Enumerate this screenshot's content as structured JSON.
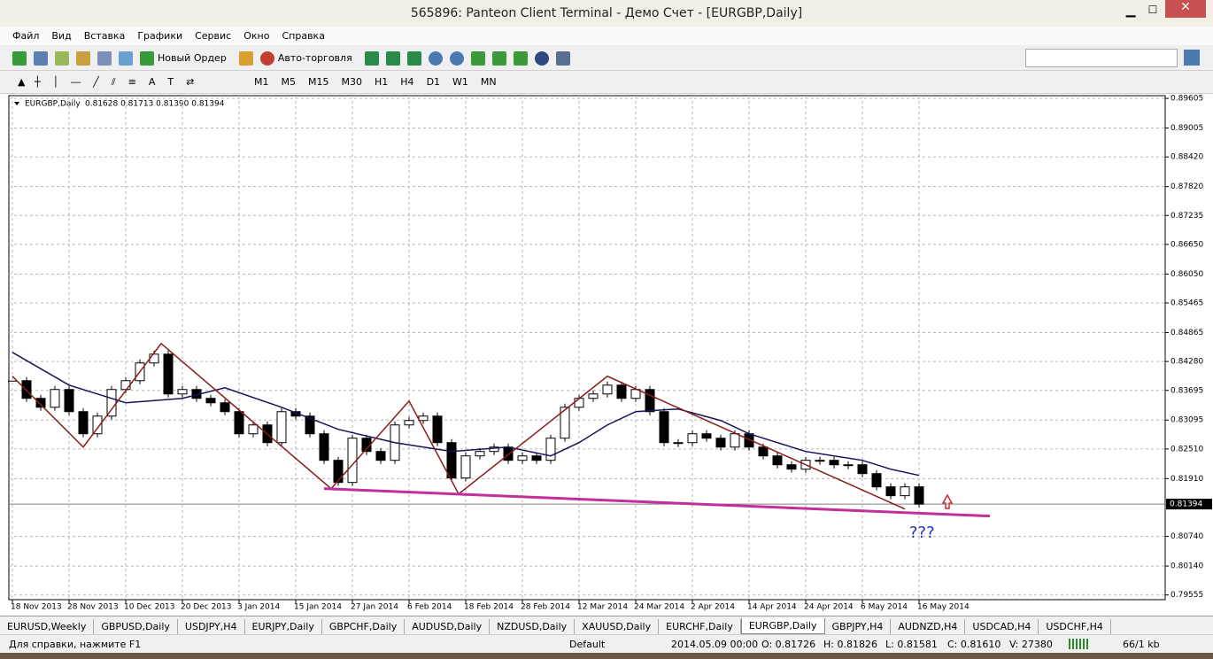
{
  "window": {
    "title": "565896: Panteon Client Terminal - Демо Счет - [EURGBP,Daily]",
    "menu": [
      "Файл",
      "Вид",
      "Вставка",
      "Графики",
      "Сервис",
      "Окно",
      "Справка"
    ],
    "toolbar": {
      "new_order": "Новый Ордер",
      "auto_trading": "Авто-торговля"
    },
    "timeframes": [
      "M1",
      "M5",
      "M15",
      "M30",
      "H1",
      "H4",
      "D1",
      "W1",
      "MN"
    ],
    "tabs": [
      "EURUSD,Weekly",
      "GBPUSD,Daily",
      "USDJPY,H4",
      "EURJPY,Daily",
      "GBPCHF,Daily",
      "AUDUSD,Daily",
      "NZDUSD,Daily",
      "XAUUSD,Daily",
      "EURCHF,Daily",
      "EURGBP,Daily",
      "GBPJPY,H4",
      "AUDNZD,H4",
      "USDCAD,H4",
      "USDCHF,H4"
    ],
    "status": [
      "Для справки, нажмите F1",
      "Default",
      "2014.05.09 00:00",
      "O: 0.81726",
      "H: 0.81826",
      "L: 0.81581",
      "C: 0.81610",
      "V: 27380",
      "66/1 kb"
    ]
  },
  "chart_data": {
    "type": "candlestick",
    "symbol": "EURGBP,Daily",
    "header": "0.81628 0.81713 0.81390 0.81394",
    "xlim": [
      -0.5,
      162.75
    ],
    "ylim": [
      0.7946,
      0.8966
    ],
    "grid": true,
    "xticks": [
      {
        "value": 0,
        "label": "18 Nov 2013"
      },
      {
        "value": 8,
        "label": "28 Nov 2013"
      },
      {
        "value": 16,
        "label": "10 Dec 2013"
      },
      {
        "value": 24,
        "label": "20 Dec 2013"
      },
      {
        "value": 32,
        "label": "3 Jan 2014"
      },
      {
        "value": 40,
        "label": "15 Jan 2014"
      },
      {
        "value": 48,
        "label": "27 Jan 2014"
      },
      {
        "value": 56,
        "label": "6 Feb 2014"
      },
      {
        "value": 64,
        "label": "18 Feb 2014"
      },
      {
        "value": 72,
        "label": "28 Feb 2014"
      },
      {
        "value": 80,
        "label": "12 Mar 2014"
      },
      {
        "value": 88,
        "label": "24 Mar 2014"
      },
      {
        "value": 96,
        "label": "2 Apr 2014"
      },
      {
        "value": 104,
        "label": "14 Apr 2014"
      },
      {
        "value": 112,
        "label": "24 Apr 2014"
      },
      {
        "value": 120,
        "label": "6 May 2014"
      },
      {
        "value": 128,
        "label": "16 May 2014"
      }
    ],
    "yticks": [
      0.89605,
      0.89005,
      {
        "value": 0.8842,
        "label": "0.88420"
      },
      {
        "value": 0.8782,
        "label": "0.87820"
      },
      0.87235,
      {
        "value": 0.8665,
        "label": "0.86650"
      },
      {
        "value": 0.8605,
        "label": "0.86050"
      },
      0.85465,
      0.84865,
      {
        "value": 0.8428,
        "label": "0.84280"
      },
      0.83695,
      0.83095,
      {
        "value": 0.8251,
        "label": "0.82510"
      },
      {
        "value": 0.8191,
        "label": "0.81910"
      },
      {
        "value": 0.8074,
        "label": "0.80740"
      },
      {
        "value": 0.8014,
        "label": "0.80140"
      },
      0.79555
    ],
    "bid": 0.81394,
    "up_color": "#ffffff",
    "down_color": "#000000",
    "x": [
      0,
      2,
      4,
      6,
      8,
      10,
      12,
      14,
      16,
      18,
      20,
      22,
      24,
      26,
      28,
      30,
      32,
      34,
      36,
      38,
      40,
      42,
      44,
      46,
      48,
      50,
      52,
      54,
      56,
      58,
      60,
      62,
      64,
      66,
      68,
      70,
      72,
      74,
      76,
      78,
      80,
      82,
      84,
      86,
      88,
      90,
      92,
      94,
      96,
      98,
      100,
      102,
      104,
      106,
      108,
      110,
      112,
      114,
      116,
      118,
      120,
      122,
      124,
      126,
      128
    ],
    "closes": [
      0.83892,
      0.83534,
      0.83354,
      0.83713,
      0.83265,
      0.82817,
      0.83175,
      0.83713,
      0.83892,
      0.8425,
      0.84429,
      0.83623,
      0.83713,
      0.83534,
      0.83444,
      0.83265,
      0.82817,
      0.82996,
      0.82638,
      0.83265,
      0.83175,
      0.82817,
      0.8228,
      0.81832,
      0.82728,
      0.82459,
      0.8228,
      0.82996,
      0.83086,
      0.83175,
      0.82638,
      0.81922,
      0.82369,
      0.82459,
      0.82548,
      0.8228,
      0.82369,
      0.8228,
      0.82728,
      0.83354,
      0.83534,
      0.83623,
      0.83802,
      0.83534,
      0.83713,
      0.83265,
      0.82638,
      0.82638,
      0.82817,
      0.82728,
      0.82548,
      0.82817,
      0.82548,
      0.82369,
      0.8219,
      0.82101,
      0.8228,
      0.8228,
      0.8219,
      0.8219,
      0.82011,
      0.81743,
      0.81564,
      0.81743,
      0.81394
    ],
    "ma": {
      "color": "#14145a",
      "x": [
        0,
        8,
        16,
        24,
        30,
        38,
        46,
        54,
        62,
        70,
        76,
        80,
        84,
        88,
        94,
        100,
        104,
        108,
        112,
        116,
        120,
        124,
        128
      ],
      "values": [
        0.84465,
        0.83802,
        0.83444,
        0.83534,
        0.83748,
        0.83354,
        0.82907,
        0.82638,
        0.82459,
        0.82548,
        0.82369,
        0.82638,
        0.82996,
        0.83265,
        0.83319,
        0.83086,
        0.82817,
        0.82638,
        0.82459,
        0.82369,
        0.8228,
        0.82101,
        0.81975
      ]
    },
    "zigzag": {
      "color": "#8b1a1a",
      "x": [
        0,
        10,
        21,
        45,
        56,
        63,
        84,
        126
      ],
      "values": [
        0.83981,
        0.82548,
        0.84644,
        0.81707,
        0.8348,
        0.81599,
        0.83981,
        0.81295
      ]
    },
    "support": {
      "color": "#c0309a",
      "x": [
        44,
        138
      ],
      "values": [
        0.81707,
        0.81151
      ]
    },
    "annotation": "???",
    "annotation_color": "#2030c0"
  }
}
